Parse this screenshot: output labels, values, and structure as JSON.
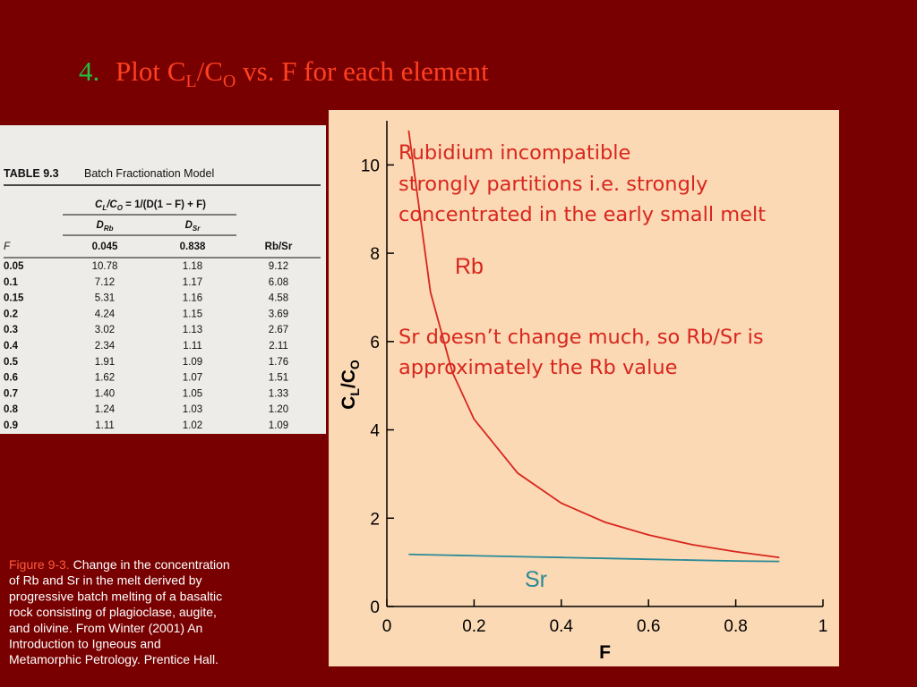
{
  "slide_title": {
    "number": "4.",
    "text": "Plot C",
    "sub1": "L",
    "mid": "/C",
    "sub2": "O",
    "rest": " vs. F for each element"
  },
  "table": {
    "label": "TABLE 9.3",
    "title": "Batch Fractionation Model",
    "formula": {
      "c": "C",
      "sub1": "L",
      "mid": "/C",
      "sub2": "O",
      "rest": " = 1/(D(1 − F) + F)"
    },
    "header": [
      {
        "d": "D",
        "sub": "Rb"
      },
      {
        "d": "D",
        "sub": "Sr"
      }
    ],
    "second_header": [
      "F",
      "0.045",
      "0.838",
      "Rb/Sr"
    ],
    "rows": [
      [
        "0.05",
        "10.78",
        "1.18",
        "9.12"
      ],
      [
        "0.1",
        "7.12",
        "1.17",
        "6.08"
      ],
      [
        "0.15",
        "5.31",
        "1.16",
        "4.58"
      ],
      [
        "0.2",
        "4.24",
        "1.15",
        "3.69"
      ],
      [
        "0.3",
        "3.02",
        "1.13",
        "2.67"
      ],
      [
        "0.4",
        "2.34",
        "1.11",
        "2.11"
      ],
      [
        "0.5",
        "1.91",
        "1.09",
        "1.76"
      ],
      [
        "0.6",
        "1.62",
        "1.07",
        "1.51"
      ],
      [
        "0.7",
        "1.40",
        "1.05",
        "1.33"
      ],
      [
        "0.8",
        "1.24",
        "1.03",
        "1.20"
      ],
      [
        "0.9",
        "1.11",
        "1.02",
        "1.09"
      ]
    ]
  },
  "caption": {
    "label": "Figure 9-3.",
    "lines": [
      " Change in the concentration",
      "of Rb and Sr in the melt derived by",
      "progressive batch melting of a basaltic",
      "rock consisting of plagioclase, augite,",
      "and olivine. From Winter (2001) An",
      "Introduction to Igneous and",
      "Metamorphic Petrology. Prentice Hall."
    ]
  },
  "chart_data": {
    "type": "line",
    "x_label": "F",
    "y_label": {
      "c": "C",
      "sub1": "L",
      "mid": "/C",
      "sub2": "O"
    },
    "x": [
      0.05,
      0.1,
      0.15,
      0.2,
      0.3,
      0.4,
      0.5,
      0.6,
      0.7,
      0.8,
      0.9
    ],
    "series": [
      {
        "name": "Rb",
        "color": "#d8261e",
        "values": [
          10.78,
          7.12,
          5.31,
          4.24,
          3.02,
          2.34,
          1.91,
          1.62,
          1.4,
          1.24,
          1.11
        ]
      },
      {
        "name": "Sr",
        "color": "#2a8a96",
        "values": [
          1.18,
          1.17,
          1.16,
          1.15,
          1.13,
          1.11,
          1.09,
          1.07,
          1.05,
          1.03,
          1.02
        ]
      }
    ],
    "xlim": [
      0,
      1
    ],
    "ylim": [
      0,
      11
    ],
    "xticks": [
      0,
      0.2,
      0.4,
      0.6,
      0.8,
      1
    ],
    "yticks": [
      0,
      2,
      4,
      6,
      8,
      10
    ],
    "annotations": [
      "Rubidium incompatible",
      "strongly partitions i.e. strongly",
      "concentrated in the early small melt",
      "Sr doesn’t change much, so Rb/Sr is",
      "approximately the Rb value"
    ]
  }
}
